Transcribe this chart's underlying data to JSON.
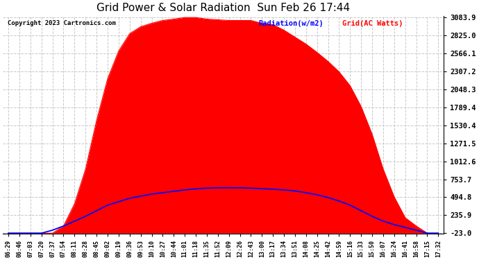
{
  "title": "Grid Power & Solar Radiation  Sun Feb 26 17:44",
  "copyright": "Copyright 2023 Cartronics.com",
  "legend_radiation": "Radiation(w/m2)",
  "legend_grid": "Grid(AC Watts)",
  "yticks": [
    3083.9,
    2825.0,
    2566.1,
    2307.2,
    2048.3,
    1789.4,
    1530.4,
    1271.5,
    1012.6,
    753.7,
    494.8,
    235.9,
    -23.0
  ],
  "ymin": -23.0,
  "ymax": 3083.9,
  "background_color": "#ffffff",
  "grid_color": "#c8c8c8",
  "fill_color": "#ff0000",
  "line_color": "#0000ff",
  "xtick_labels": [
    "06:29",
    "06:46",
    "07:03",
    "07:20",
    "07:37",
    "07:54",
    "08:11",
    "08:28",
    "08:45",
    "09:02",
    "09:19",
    "09:36",
    "09:53",
    "10:10",
    "10:27",
    "10:44",
    "11:01",
    "11:18",
    "11:35",
    "11:52",
    "12:09",
    "12:26",
    "12:43",
    "13:00",
    "13:17",
    "13:34",
    "13:51",
    "14:08",
    "14:25",
    "14:42",
    "14:59",
    "15:16",
    "15:33",
    "15:50",
    "16:07",
    "16:24",
    "16:41",
    "16:58",
    "17:15",
    "17:32"
  ],
  "grid_values": [
    -23,
    -23,
    -23,
    -23,
    -23,
    80,
    400,
    900,
    1600,
    2200,
    2600,
    2850,
    2950,
    3000,
    3040,
    3060,
    3083,
    3083,
    3060,
    3050,
    3040,
    3040,
    3040,
    3000,
    2980,
    2900,
    2800,
    2700,
    2580,
    2450,
    2300,
    2100,
    1800,
    1400,
    900,
    500,
    200,
    80,
    -23,
    -23
  ],
  "radiation_values": [
    -23,
    -23,
    -23,
    -23,
    20,
    80,
    150,
    220,
    300,
    380,
    430,
    480,
    510,
    540,
    560,
    580,
    600,
    615,
    625,
    630,
    632,
    630,
    625,
    618,
    610,
    600,
    585,
    560,
    530,
    490,
    440,
    380,
    300,
    220,
    150,
    100,
    60,
    20,
    -23,
    -23
  ]
}
